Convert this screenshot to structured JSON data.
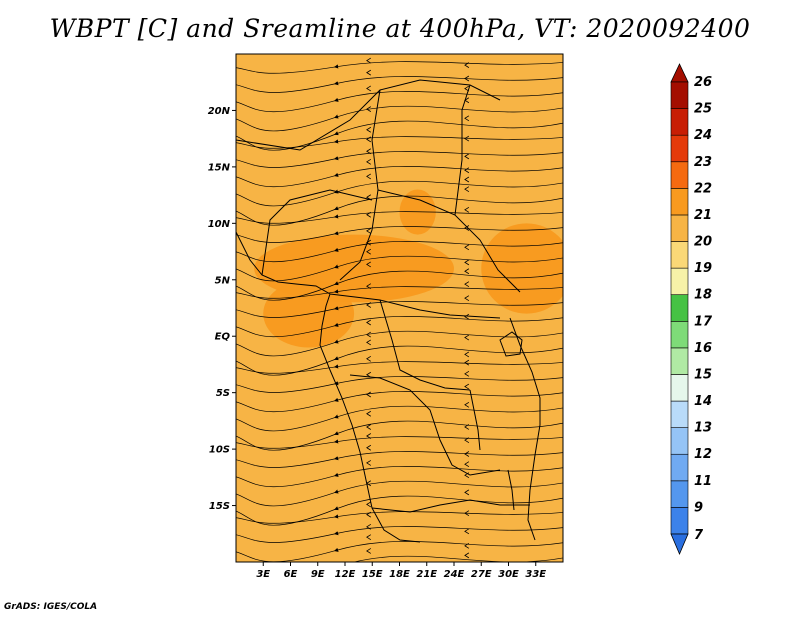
{
  "title": "WBPT [C] and Sreamline at 400hPa, VT: 2020092400",
  "credit": "GrADS: IGES/COLA",
  "map": {
    "lon_range": [
      0,
      36
    ],
    "lat_range": [
      -20,
      25
    ],
    "lat_ticks": [
      {
        "value": 20,
        "label": "20N"
      },
      {
        "value": 15,
        "label": "15N"
      },
      {
        "value": 10,
        "label": "10N"
      },
      {
        "value": 5,
        "label": "5N"
      },
      {
        "value": 0,
        "label": "EQ"
      },
      {
        "value": -5,
        "label": "5S"
      },
      {
        "value": -10,
        "label": "10S"
      },
      {
        "value": -15,
        "label": "15S"
      }
    ],
    "lon_ticks": [
      {
        "value": 3,
        "label": "3E"
      },
      {
        "value": 6,
        "label": "6E"
      },
      {
        "value": 9,
        "label": "9E"
      },
      {
        "value": 12,
        "label": "12E"
      },
      {
        "value": 15,
        "label": "15E"
      },
      {
        "value": 18,
        "label": "18E"
      },
      {
        "value": 21,
        "label": "21E"
      },
      {
        "value": 24,
        "label": "24E"
      },
      {
        "value": 27,
        "label": "27E"
      },
      {
        "value": 30,
        "label": "30E"
      },
      {
        "value": 33,
        "label": "33E"
      }
    ],
    "background_level": 21
  },
  "colorbar": {
    "levels": [
      "7",
      "9",
      "11",
      "12",
      "13",
      "14",
      "15",
      "16",
      "17",
      "18",
      "19",
      "20",
      "21",
      "22",
      "23",
      "24",
      "25",
      "26"
    ],
    "colors": [
      "#2a6fe0",
      "#3c82ea",
      "#5497ee",
      "#70aaf2",
      "#95c4f6",
      "#b9dbf9",
      "#e6f7ec",
      "#b0eaa4",
      "#7edb78",
      "#46c244",
      "#f7f2a8",
      "#fad877",
      "#f7b445",
      "#f89a1f",
      "#f56a10",
      "#e43a0a",
      "#c81e04",
      "#a40e00"
    ]
  },
  "warm_regions": [
    {
      "name": "central-band",
      "level": 22,
      "lon": 13,
      "lat": 6,
      "rlon": 11,
      "rlat": 3
    },
    {
      "name": "gabon-zone",
      "level": 22,
      "lon": 8,
      "lat": 2,
      "rlon": 5,
      "rlat": 3
    },
    {
      "name": "northeast-zone",
      "level": 22,
      "lon": 32,
      "lat": 6,
      "rlon": 5,
      "rlat": 4
    },
    {
      "name": "chad-zone",
      "level": 22,
      "lon": 20,
      "lat": 11,
      "rlon": 2,
      "rlat": 2
    }
  ]
}
